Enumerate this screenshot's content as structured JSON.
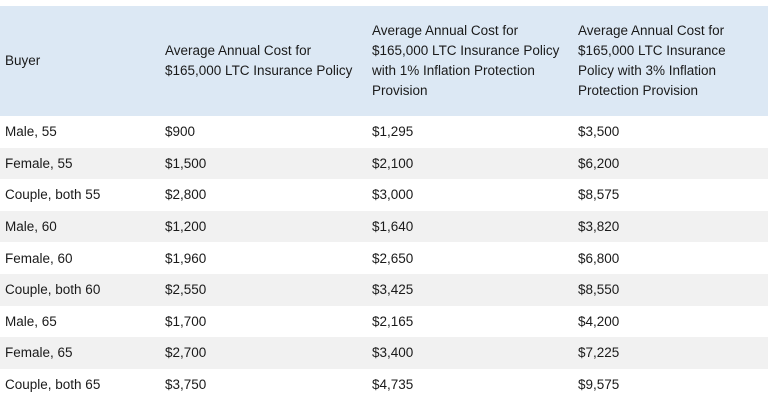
{
  "table": {
    "headers": [
      "Buyer",
      "Average Annual Cost for $165,000 LTC Insurance Policy",
      "Average Annual Cost for $165,000 LTC Insurance Policy with 1% Inflation Protection Provision",
      "Average Annual Cost for $165,000 LTC Insurance Policy with 3% Inflation Protection Provision"
    ],
    "rows": [
      [
        "Male, 55",
        "$900",
        "$1,295",
        "$3,500"
      ],
      [
        "Female, 55",
        "$1,500",
        "$2,100",
        "$6,200"
      ],
      [
        "Couple, both 55",
        "$2,800",
        "$3,000",
        "$8,575"
      ],
      [
        "Male, 60",
        "$1,200",
        "$1,640",
        "$3,820"
      ],
      [
        "Female, 60",
        "$1,960",
        "$2,650",
        "$6,800"
      ],
      [
        "Couple, both 60",
        "$2,550",
        "$3,425",
        "$8,550"
      ],
      [
        "Male, 65",
        "$1,700",
        "$2,165",
        "$4,200"
      ],
      [
        "Female, 65",
        "$2,700",
        "$3,400",
        "$7,225"
      ],
      [
        "Couple, both 65",
        "$3,750",
        "$4,735",
        "$9,575"
      ]
    ]
  }
}
